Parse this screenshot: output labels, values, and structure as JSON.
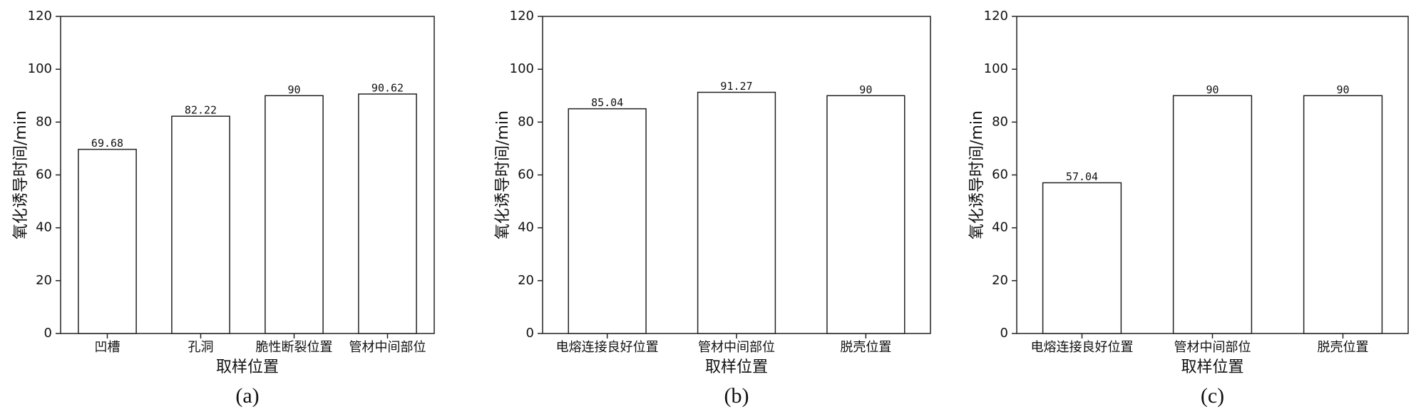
{
  "chart_data": [
    {
      "type": "bar",
      "caption": "(a)",
      "ylabel": "氧化诱导时间/min",
      "xlabel": "取样位置",
      "categories": [
        "凹槽",
        "孔洞",
        "脆性断裂位置",
        "管材中间部位"
      ],
      "values": [
        69.68,
        82.22,
        90,
        90.62
      ],
      "color": "#ffffff",
      "ylim": [
        0,
        120
      ],
      "yticks": [
        0,
        20,
        40,
        60,
        80,
        100,
        120
      ]
    },
    {
      "type": "bar",
      "caption": "(b)",
      "ylabel": "氧化诱导时间/min",
      "xlabel": "取样位置",
      "categories": [
        "电熔连接良好位置",
        "管材中间部位",
        "脱壳位置"
      ],
      "values": [
        85.04,
        91.27,
        90
      ],
      "color": "#ffffff",
      "ylim": [
        0,
        120
      ],
      "yticks": [
        0,
        20,
        40,
        60,
        80,
        100,
        120
      ]
    },
    {
      "type": "bar",
      "caption": "(c)",
      "ylabel": "氧化诱导时间/min",
      "xlabel": "取样位置",
      "categories": [
        "电熔连接良好位置",
        "管材中间部位",
        "脱壳位置"
      ],
      "values": [
        57.04,
        90,
        90
      ],
      "color": "#ffffff",
      "ylim": [
        0,
        120
      ],
      "yticks": [
        0,
        20,
        40,
        60,
        80,
        100,
        120
      ]
    }
  ]
}
